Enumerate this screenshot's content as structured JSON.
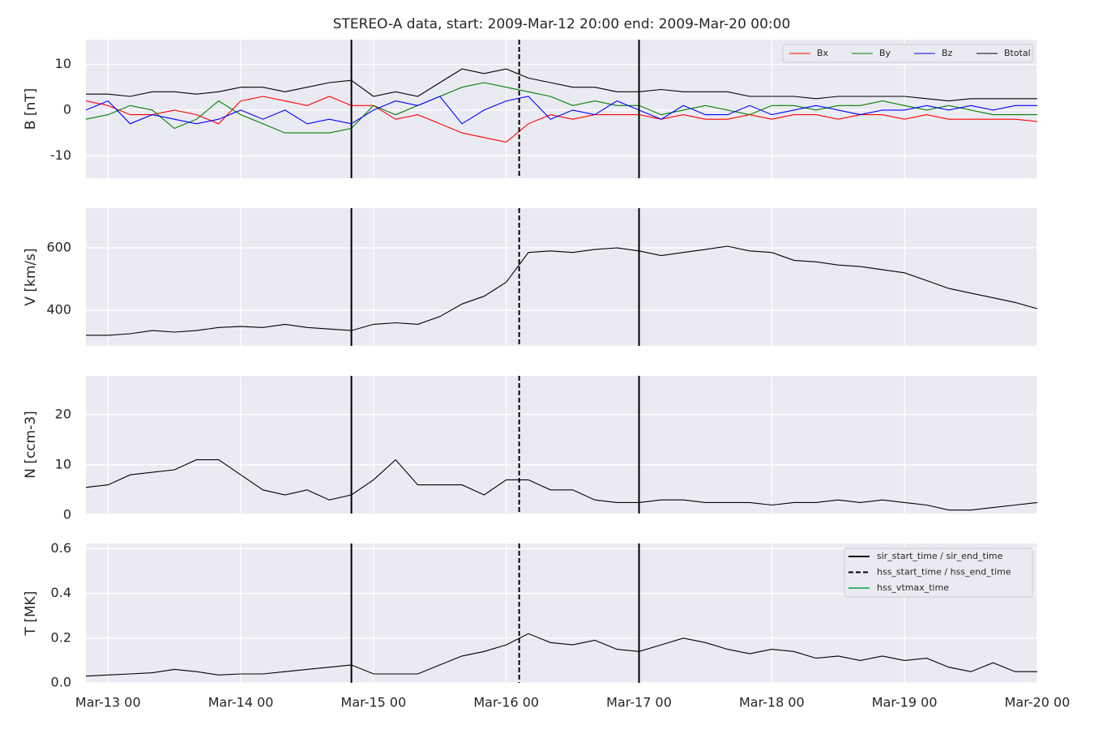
{
  "chart_data": [
    {
      "type": "line",
      "title": "STEREO-A data, start: 2009-Mar-12 20:00  end: 2009-Mar-20 00:00",
      "ylabel": "B [nT]",
      "x": [
        "2009-03-12T20:00",
        "2009-03-13T00:00",
        "2009-03-13T04:00",
        "2009-03-13T08:00",
        "2009-03-13T12:00",
        "2009-03-13T16:00",
        "2009-03-13T20:00",
        "2009-03-14T00:00",
        "2009-03-14T04:00",
        "2009-03-14T08:00",
        "2009-03-14T12:00",
        "2009-03-14T16:00",
        "2009-03-14T20:00",
        "2009-03-15T00:00",
        "2009-03-15T04:00",
        "2009-03-15T08:00",
        "2009-03-15T12:00",
        "2009-03-15T16:00",
        "2009-03-15T20:00",
        "2009-03-16T00:00",
        "2009-03-16T04:00",
        "2009-03-16T08:00",
        "2009-03-16T12:00",
        "2009-03-16T16:00",
        "2009-03-16T20:00",
        "2009-03-17T00:00",
        "2009-03-17T04:00",
        "2009-03-17T08:00",
        "2009-03-17T12:00",
        "2009-03-17T16:00",
        "2009-03-17T20:00",
        "2009-03-18T00:00",
        "2009-03-18T04:00",
        "2009-03-18T08:00",
        "2009-03-18T12:00",
        "2009-03-18T16:00",
        "2009-03-18T20:00",
        "2009-03-19T00:00",
        "2009-03-19T04:00",
        "2009-03-19T08:00",
        "2009-03-19T12:00",
        "2009-03-19T16:00",
        "2009-03-19T20:00",
        "2009-03-20T00:00"
      ],
      "series": [
        {
          "name": "Bx",
          "color": "#ff0000",
          "values": [
            2,
            1,
            -1,
            -1,
            0,
            -1,
            -3,
            2,
            3,
            2,
            1,
            3,
            1,
            1,
            -2,
            -1,
            -3,
            -5,
            -6,
            -7,
            -3,
            -1,
            -2,
            -1,
            -1,
            -1,
            -2,
            -1,
            -2,
            -2,
            -1,
            -2,
            -1,
            -1,
            -2,
            -1,
            -1,
            -2,
            -1,
            -2,
            -2,
            -2,
            -2,
            -2.5
          ]
        },
        {
          "name": "By",
          "color": "#008000",
          "values": [
            -2,
            -1,
            1,
            0,
            -4,
            -2,
            2,
            -1,
            -3,
            -5,
            -5,
            -5,
            -4,
            1,
            -1,
            1,
            3,
            5,
            6,
            5,
            4,
            3,
            1,
            2,
            1,
            1,
            -1,
            0,
            1,
            0,
            -1,
            1,
            1,
            0,
            1,
            1,
            2,
            1,
            0,
            1,
            0,
            -1,
            -1,
            -1
          ]
        },
        {
          "name": "Bz",
          "color": "#0000ff",
          "values": [
            0,
            2,
            -3,
            -1,
            -2,
            -3,
            -2,
            0,
            -2,
            0,
            -3,
            -2,
            -3,
            0,
            2,
            1,
            3,
            -3,
            0,
            2,
            3,
            -2,
            0,
            -1,
            2,
            0,
            -2,
            1,
            -1,
            -1,
            1,
            -1,
            0,
            1,
            0,
            -1,
            0,
            0,
            1,
            0,
            1,
            0,
            1,
            1
          ]
        },
        {
          "name": "Btotal",
          "color": "#000000",
          "values": [
            3.5,
            3.5,
            3,
            4,
            4,
            3.5,
            4,
            5,
            5,
            4,
            5,
            6,
            6.5,
            3,
            4,
            3,
            6,
            9,
            8,
            9,
            7,
            6,
            5,
            5,
            4,
            4,
            4.5,
            4,
            4,
            4,
            3,
            3,
            3,
            2.5,
            3,
            3,
            3,
            3,
            2.5,
            2,
            2.5,
            2.5,
            2.5,
            2.5
          ]
        }
      ],
      "xlim": [
        "2009-03-12T20:00",
        "2009-03-20T00:00"
      ],
      "xticks": [
        "2009-03-13T00:00",
        "2009-03-14T00:00",
        "2009-03-15T00:00",
        "2009-03-16T00:00",
        "2009-03-17T00:00",
        "2009-03-18T00:00",
        "2009-03-19T00:00",
        "2009-03-20T00:00"
      ],
      "ylim": [
        -14.9,
        15.4
      ],
      "yticks": [
        -10,
        0,
        10
      ],
      "grid": true,
      "legend": "upper right",
      "reference_lines": [
        {
          "color": "#000000",
          "dash": "solid",
          "x": [
            "2009-03-14T20:00",
            "2009-03-17T00:00"
          ]
        },
        {
          "color": "#000000",
          "dash": "dashed",
          "x": [
            "2009-03-16T02:20"
          ]
        }
      ]
    },
    {
      "type": "line",
      "ylabel": "V [km/s]",
      "color": "#000000",
      "x": [
        "2009-03-12T20:00",
        "2009-03-13T00:00",
        "2009-03-13T04:00",
        "2009-03-13T08:00",
        "2009-03-13T12:00",
        "2009-03-13T16:00",
        "2009-03-13T20:00",
        "2009-03-14T00:00",
        "2009-03-14T04:00",
        "2009-03-14T08:00",
        "2009-03-14T12:00",
        "2009-03-14T16:00",
        "2009-03-14T20:00",
        "2009-03-15T00:00",
        "2009-03-15T04:00",
        "2009-03-15T08:00",
        "2009-03-15T12:00",
        "2009-03-15T16:00",
        "2009-03-15T20:00",
        "2009-03-16T00:00",
        "2009-03-16T04:00",
        "2009-03-16T08:00",
        "2009-03-16T12:00",
        "2009-03-16T16:00",
        "2009-03-16T20:00",
        "2009-03-17T00:00",
        "2009-03-17T04:00",
        "2009-03-17T08:00",
        "2009-03-17T12:00",
        "2009-03-17T16:00",
        "2009-03-17T20:00",
        "2009-03-18T00:00",
        "2009-03-18T04:00",
        "2009-03-18T08:00",
        "2009-03-18T12:00",
        "2009-03-18T16:00",
        "2009-03-18T20:00",
        "2009-03-19T00:00",
        "2009-03-19T04:00",
        "2009-03-19T08:00",
        "2009-03-19T12:00",
        "2009-03-19T16:00",
        "2009-03-19T20:00",
        "2009-03-20T00:00"
      ],
      "values": [
        320,
        320,
        325,
        335,
        330,
        335,
        345,
        348,
        345,
        355,
        345,
        340,
        335,
        355,
        360,
        355,
        380,
        420,
        445,
        490,
        585,
        590,
        585,
        595,
        600,
        590,
        575,
        585,
        595,
        605,
        590,
        585,
        560,
        555,
        545,
        540,
        530,
        520,
        495,
        470,
        455,
        440,
        425,
        405
      ],
      "xlim": [
        "2009-03-12T20:00",
        "2009-03-20T00:00"
      ],
      "xticks": [
        "2009-03-13T00:00",
        "2009-03-14T00:00",
        "2009-03-15T00:00",
        "2009-03-16T00:00",
        "2009-03-17T00:00",
        "2009-03-18T00:00",
        "2009-03-19T00:00",
        "2009-03-20T00:00"
      ],
      "ylim": [
        286,
        727
      ],
      "yticks": [
        400,
        600
      ],
      "grid": true,
      "reference_lines": [
        {
          "color": "#000000",
          "dash": "solid",
          "x": [
            "2009-03-14T20:00",
            "2009-03-17T00:00"
          ]
        },
        {
          "color": "#000000",
          "dash": "dashed",
          "x": [
            "2009-03-16T02:20"
          ]
        }
      ]
    },
    {
      "type": "line",
      "ylabel": "N [ccm-3]",
      "color": "#000000",
      "x": [
        "2009-03-12T20:00",
        "2009-03-13T00:00",
        "2009-03-13T04:00",
        "2009-03-13T08:00",
        "2009-03-13T12:00",
        "2009-03-13T16:00",
        "2009-03-13T20:00",
        "2009-03-14T00:00",
        "2009-03-14T04:00",
        "2009-03-14T08:00",
        "2009-03-14T12:00",
        "2009-03-14T16:00",
        "2009-03-14T20:00",
        "2009-03-15T00:00",
        "2009-03-15T04:00",
        "2009-03-15T08:00",
        "2009-03-15T12:00",
        "2009-03-15T16:00",
        "2009-03-15T20:00",
        "2009-03-16T00:00",
        "2009-03-16T04:00",
        "2009-03-16T08:00",
        "2009-03-16T12:00",
        "2009-03-16T16:00",
        "2009-03-16T20:00",
        "2009-03-17T00:00",
        "2009-03-17T04:00",
        "2009-03-17T08:00",
        "2009-03-17T12:00",
        "2009-03-17T16:00",
        "2009-03-17T20:00",
        "2009-03-18T00:00",
        "2009-03-18T04:00",
        "2009-03-18T08:00",
        "2009-03-18T12:00",
        "2009-03-18T16:00",
        "2009-03-18T20:00",
        "2009-03-19T00:00",
        "2009-03-19T04:00",
        "2009-03-19T08:00",
        "2009-03-19T12:00",
        "2009-03-19T16:00",
        "2009-03-19T20:00",
        "2009-03-20T00:00"
      ],
      "values": [
        5.5,
        6,
        8,
        8.5,
        9,
        11,
        11,
        8,
        5,
        4,
        5,
        3,
        4,
        7,
        11,
        6,
        6,
        6,
        4,
        7,
        7,
        5,
        5,
        3,
        2.5,
        2.5,
        3,
        3,
        2.5,
        2.5,
        2.5,
        2,
        2.5,
        2.5,
        3,
        2.5,
        3,
        2.5,
        2,
        1,
        1,
        1.5,
        2,
        2.5
      ],
      "xlim": [
        "2009-03-12T20:00",
        "2009-03-20T00:00"
      ],
      "xticks": [
        "2009-03-13T00:00",
        "2009-03-14T00:00",
        "2009-03-15T00:00",
        "2009-03-16T00:00",
        "2009-03-17T00:00",
        "2009-03-18T00:00",
        "2009-03-19T00:00",
        "2009-03-20T00:00"
      ],
      "ylim": [
        0.3,
        27.7
      ],
      "yticks": [
        0,
        10,
        20
      ],
      "grid": true,
      "reference_lines": [
        {
          "color": "#000000",
          "dash": "solid",
          "x": [
            "2009-03-14T20:00",
            "2009-03-17T00:00"
          ]
        },
        {
          "color": "#000000",
          "dash": "dashed",
          "x": [
            "2009-03-16T02:20"
          ]
        }
      ]
    },
    {
      "type": "line",
      "ylabel": "T [MK]",
      "color": "#000000",
      "x": [
        "2009-03-12T20:00",
        "2009-03-13T00:00",
        "2009-03-13T04:00",
        "2009-03-13T08:00",
        "2009-03-13T12:00",
        "2009-03-13T16:00",
        "2009-03-13T20:00",
        "2009-03-14T00:00",
        "2009-03-14T04:00",
        "2009-03-14T08:00",
        "2009-03-14T12:00",
        "2009-03-14T16:00",
        "2009-03-14T20:00",
        "2009-03-15T00:00",
        "2009-03-15T04:00",
        "2009-03-15T08:00",
        "2009-03-15T12:00",
        "2009-03-15T16:00",
        "2009-03-15T20:00",
        "2009-03-16T00:00",
        "2009-03-16T04:00",
        "2009-03-16T08:00",
        "2009-03-16T12:00",
        "2009-03-16T16:00",
        "2009-03-16T20:00",
        "2009-03-17T00:00",
        "2009-03-17T04:00",
        "2009-03-17T08:00",
        "2009-03-17T12:00",
        "2009-03-17T16:00",
        "2009-03-17T20:00",
        "2009-03-18T00:00",
        "2009-03-18T04:00",
        "2009-03-18T08:00",
        "2009-03-18T12:00",
        "2009-03-18T16:00",
        "2009-03-18T20:00",
        "2009-03-19T00:00",
        "2009-03-19T04:00",
        "2009-03-19T08:00",
        "2009-03-19T12:00",
        "2009-03-19T16:00",
        "2009-03-19T20:00",
        "2009-03-20T00:00"
      ],
      "values": [
        0.03,
        0.035,
        0.04,
        0.045,
        0.06,
        0.05,
        0.035,
        0.04,
        0.04,
        0.05,
        0.06,
        0.07,
        0.08,
        0.04,
        0.04,
        0.04,
        0.08,
        0.12,
        0.14,
        0.17,
        0.22,
        0.18,
        0.17,
        0.19,
        0.15,
        0.14,
        0.17,
        0.2,
        0.18,
        0.15,
        0.13,
        0.15,
        0.14,
        0.11,
        0.12,
        0.1,
        0.12,
        0.1,
        0.11,
        0.07,
        0.05,
        0.09,
        0.05,
        0.05
      ],
      "xlim": [
        "2009-03-12T20:00",
        "2009-03-20T00:00"
      ],
      "xticks": [
        {
          "value": "2009-03-13T00:00",
          "label": "Mar-13 00"
        },
        {
          "value": "2009-03-14T00:00",
          "label": "Mar-14 00"
        },
        {
          "value": "2009-03-15T00:00",
          "label": "Mar-15 00"
        },
        {
          "value": "2009-03-16T00:00",
          "label": "Mar-16 00"
        },
        {
          "value": "2009-03-17T00:00",
          "label": "Mar-17 00"
        },
        {
          "value": "2009-03-18T00:00",
          "label": "Mar-18 00"
        },
        {
          "value": "2009-03-19T00:00",
          "label": "Mar-19 00"
        },
        {
          "value": "2009-03-20T00:00",
          "label": "Mar-20 00"
        }
      ],
      "ylim": [
        0,
        0.623
      ],
      "yticks": [
        0.6,
        0.4,
        0.2,
        {
          "value": 0,
          "label": "0.0"
        }
      ],
      "grid": true,
      "legend": "upper right",
      "reference_lines": [
        {
          "name": "sir_start_time / sir_end_time",
          "color": "#000000",
          "dash": "solid",
          "x": [
            "2009-03-14T20:00",
            "2009-03-17T00:00"
          ]
        },
        {
          "name": "hss_start_time / hss_end_time",
          "color": "#000000",
          "dash": "dashed",
          "x": [
            "2009-03-16T02:20"
          ]
        },
        {
          "name": "hss_vtmax_time",
          "color": "#3cb371",
          "dash": "solid",
          "x": []
        }
      ]
    }
  ]
}
